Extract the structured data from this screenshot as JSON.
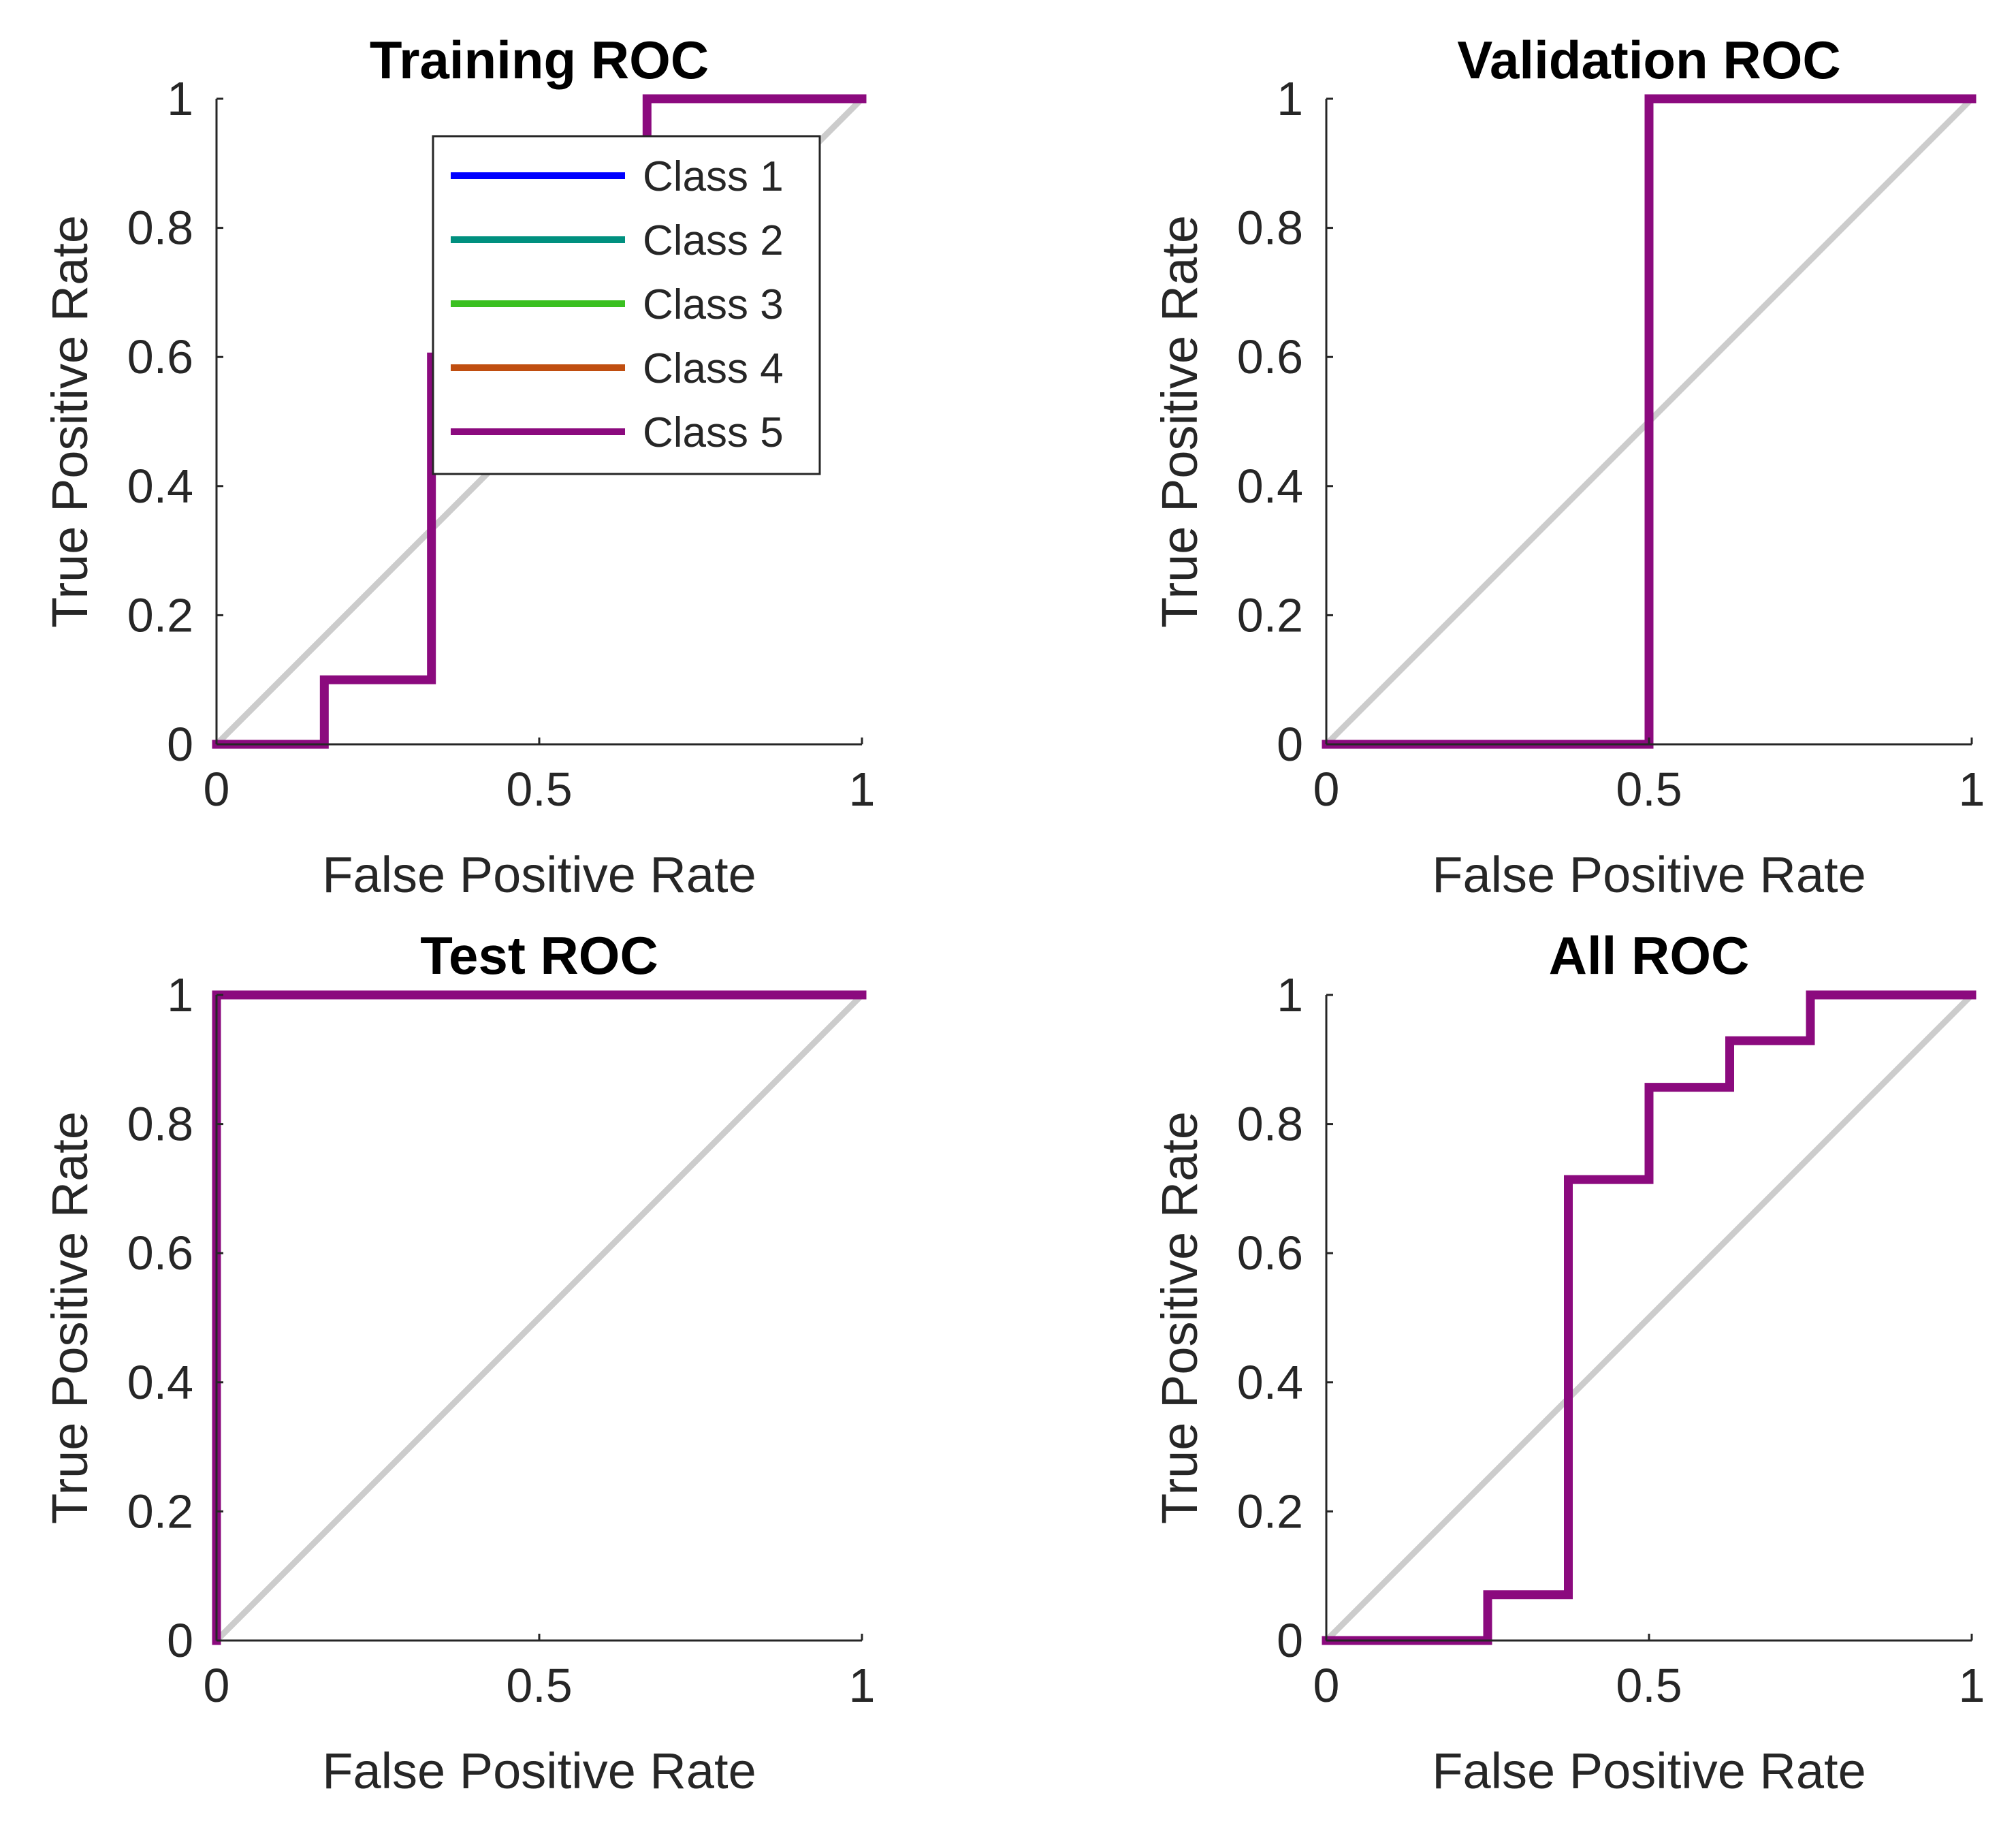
{
  "colors": {
    "class1": "#0000ff",
    "class2": "#00907f",
    "class3": "#3ac020",
    "class4": "#c04e10",
    "class5": "#8b0a7e",
    "reference": "#cccccc"
  },
  "legend": [
    {
      "name": "Class 1",
      "color": "#0000ff"
    },
    {
      "name": "Class 2",
      "color": "#00907f"
    },
    {
      "name": "Class 3",
      "color": "#3ac020"
    },
    {
      "name": "Class 4",
      "color": "#c04e10"
    },
    {
      "name": "Class 5",
      "color": "#8b0a7e"
    }
  ],
  "chart_data": [
    {
      "type": "line",
      "title": "Training ROC",
      "xlabel": "False Positive Rate",
      "ylabel": "True Positive Rate",
      "xlim": [
        0,
        1
      ],
      "ylim": [
        0,
        1
      ],
      "xticks": [
        0,
        0.5,
        1
      ],
      "xtick_labels": [
        "0",
        "0.5",
        "1"
      ],
      "yticks": [
        0,
        0.2,
        0.4,
        0.6,
        0.8,
        1
      ],
      "ytick_labels": [
        "0",
        "0.2",
        "0.4",
        "0.6",
        "0.8",
        "1"
      ],
      "legend_position": "top-right",
      "reference_line": {
        "x": [
          0,
          1
        ],
        "y": [
          0,
          1
        ]
      },
      "series": [
        {
          "name": "Class 5",
          "color": "#8b0a7e",
          "x": [
            0,
            0.167,
            0.167,
            0.333,
            0.333,
            0.667,
            0.667,
            1
          ],
          "y": [
            0,
            0,
            0.1,
            0.1,
            0.6,
            0.6,
            1,
            1
          ]
        }
      ]
    },
    {
      "type": "line",
      "title": "Validation ROC",
      "xlabel": "False Positive Rate",
      "ylabel": "True Positive Rate",
      "xlim": [
        0,
        1
      ],
      "ylim": [
        0,
        1
      ],
      "xticks": [
        0,
        0.5,
        1
      ],
      "xtick_labels": [
        "0",
        "0.5",
        "1"
      ],
      "yticks": [
        0,
        0.2,
        0.4,
        0.6,
        0.8,
        1
      ],
      "ytick_labels": [
        "0",
        "0.2",
        "0.4",
        "0.6",
        "0.8",
        "1"
      ],
      "reference_line": {
        "x": [
          0,
          1
        ],
        "y": [
          0,
          1
        ]
      },
      "series": [
        {
          "name": "Class 5",
          "color": "#8b0a7e",
          "x": [
            0,
            0.5,
            0.5,
            1
          ],
          "y": [
            0,
            0,
            1,
            1
          ]
        }
      ]
    },
    {
      "type": "line",
      "title": "Test ROC",
      "xlabel": "False Positive Rate",
      "ylabel": "True Positive Rate",
      "xlim": [
        0,
        1
      ],
      "ylim": [
        0,
        1
      ],
      "xticks": [
        0,
        0.5,
        1
      ],
      "xtick_labels": [
        "0",
        "0.5",
        "1"
      ],
      "yticks": [
        0,
        0.2,
        0.4,
        0.6,
        0.8,
        1
      ],
      "ytick_labels": [
        "0",
        "0.2",
        "0.4",
        "0.6",
        "0.8",
        "1"
      ],
      "reference_line": {
        "x": [
          0,
          1
        ],
        "y": [
          0,
          1
        ]
      },
      "series": [
        {
          "name": "Class 5",
          "color": "#8b0a7e",
          "x": [
            0,
            0,
            1
          ],
          "y": [
            0,
            1,
            1
          ]
        }
      ]
    },
    {
      "type": "line",
      "title": "All ROC",
      "xlabel": "False Positive Rate",
      "ylabel": "True Positive Rate",
      "xlim": [
        0,
        1
      ],
      "ylim": [
        0,
        1
      ],
      "xticks": [
        0,
        0.5,
        1
      ],
      "xtick_labels": [
        "0",
        "0.5",
        "1"
      ],
      "yticks": [
        0,
        0.2,
        0.4,
        0.6,
        0.8,
        1
      ],
      "ytick_labels": [
        "0",
        "0.2",
        "0.4",
        "0.6",
        "0.8",
        "1"
      ],
      "reference_line": {
        "x": [
          0,
          1
        ],
        "y": [
          0,
          1
        ]
      },
      "series": [
        {
          "name": "Class 5",
          "color": "#8b0a7e",
          "x": [
            0,
            0.25,
            0.25,
            0.375,
            0.375,
            0.5,
            0.5,
            0.625,
            0.625,
            0.75,
            0.75,
            1
          ],
          "y": [
            0,
            0,
            0.071,
            0.071,
            0.714,
            0.714,
            0.857,
            0.857,
            0.929,
            0.929,
            1,
            1
          ]
        }
      ]
    }
  ]
}
